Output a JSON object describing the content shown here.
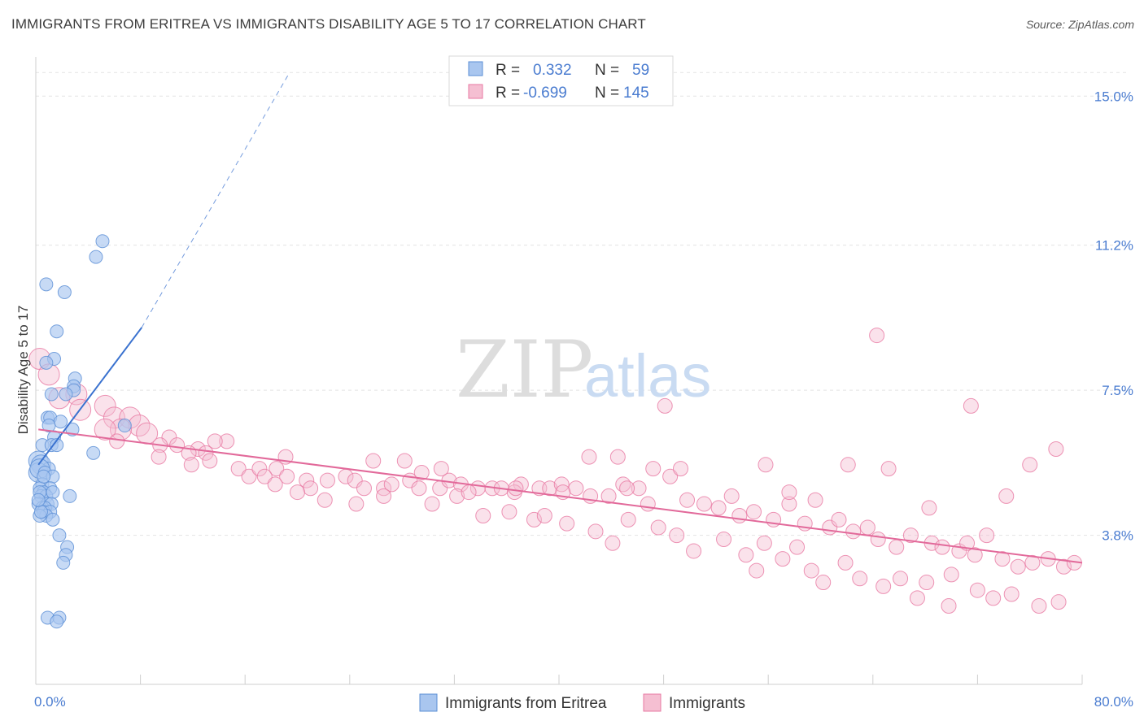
{
  "title": "IMMIGRANTS FROM ERITREA VS IMMIGRANTS DISABILITY AGE 5 TO 17 CORRELATION CHART",
  "source": "Source: ZipAtlas.com",
  "watermark": {
    "zip": "ZIP",
    "atlas": "atlas"
  },
  "colors": {
    "blue": "#5b8fd6",
    "blue_fill": "#a9c6ef",
    "blue_line": "#3a72cf",
    "pink": "#e879a3",
    "pink_fill": "#f5bfd2",
    "pink_line": "#e2699a",
    "axis_text": "#4a7cd0",
    "grid": "#e3e3e3"
  },
  "legend": {
    "rows": [
      {
        "r_label": "R =",
        "r_value": "0.332",
        "n_label": "N =",
        "n_value": "59"
      },
      {
        "r_label": "R =",
        "r_value": "-0.699",
        "n_label": "N =",
        "n_value": "145"
      }
    ]
  },
  "chart_data": {
    "type": "scatter",
    "title": "IMMIGRANTS FROM ERITREA VS IMMIGRANTS DISABILITY AGE 5 TO 17 CORRELATION CHART",
    "xlabel": "",
    "ylabel": "Disability Age 5 to 17",
    "xlim": [
      0,
      80
    ],
    "ylim": [
      0,
      16
    ],
    "x_ticks": [
      0,
      8,
      16,
      24,
      32,
      40,
      48,
      56,
      64,
      72,
      80
    ],
    "x_tick_labels": [
      {
        "x": 0,
        "label": "0.0%"
      },
      {
        "x": 80,
        "label": "80.0%"
      }
    ],
    "y_ticks": [
      {
        "y": 3.8,
        "label": "3.8%"
      },
      {
        "y": 7.5,
        "label": "7.5%"
      },
      {
        "y": 11.2,
        "label": "11.2%"
      },
      {
        "y": 15.0,
        "label": "15.0%"
      }
    ],
    "grid": true,
    "legend_position": "bottom",
    "series": [
      {
        "name": "Immigrants from Eritrea",
        "color": "#5b8fd6",
        "trend": {
          "x": [
            0.2,
            8.1
          ],
          "y": [
            5.6,
            9.1
          ],
          "dashed_to": [
            19.4,
            15.6
          ]
        },
        "points": [
          [
            5.1,
            11.3
          ],
          [
            4.6,
            10.9
          ],
          [
            0.8,
            10.2
          ],
          [
            2.2,
            10.0
          ],
          [
            1.6,
            9.0
          ],
          [
            1.4,
            8.3
          ],
          [
            0.8,
            8.2
          ],
          [
            3.0,
            7.8
          ],
          [
            2.9,
            7.6
          ],
          [
            1.2,
            7.4
          ],
          [
            2.9,
            7.5
          ],
          [
            2.3,
            7.4
          ],
          [
            0.9,
            6.8
          ],
          [
            1.1,
            6.8
          ],
          [
            1.0,
            6.6
          ],
          [
            1.9,
            6.7
          ],
          [
            2.8,
            6.5
          ],
          [
            6.8,
            6.6
          ],
          [
            1.4,
            6.3
          ],
          [
            0.5,
            6.1
          ],
          [
            1.2,
            6.1
          ],
          [
            1.6,
            6.1
          ],
          [
            4.4,
            5.9
          ],
          [
            0.2,
            5.7
          ],
          [
            0.4,
            5.6
          ],
          [
            1.0,
            5.5
          ],
          [
            0.2,
            5.4
          ],
          [
            0.3,
            5.5
          ],
          [
            0.7,
            5.4
          ],
          [
            1.3,
            5.3
          ],
          [
            0.5,
            5.1
          ],
          [
            1.1,
            5.0
          ],
          [
            0.3,
            5.0
          ],
          [
            0.6,
            4.9
          ],
          [
            0.4,
            4.8
          ],
          [
            0.8,
            4.8
          ],
          [
            1.3,
            4.9
          ],
          [
            0.3,
            4.9
          ],
          [
            2.6,
            4.8
          ],
          [
            0.2,
            4.6
          ],
          [
            0.9,
            4.6
          ],
          [
            1.2,
            4.6
          ],
          [
            0.5,
            4.5
          ],
          [
            0.7,
            4.5
          ],
          [
            0.6,
            4.4
          ],
          [
            1.1,
            4.4
          ],
          [
            0.8,
            4.3
          ],
          [
            0.3,
            4.3
          ],
          [
            0.4,
            4.4
          ],
          [
            1.3,
            4.2
          ],
          [
            1.8,
            3.8
          ],
          [
            2.4,
            3.5
          ],
          [
            2.3,
            3.3
          ],
          [
            2.1,
            3.1
          ],
          [
            0.9,
            1.7
          ],
          [
            1.8,
            1.7
          ],
          [
            1.6,
            1.6
          ],
          [
            0.2,
            4.7
          ],
          [
            0.6,
            5.3
          ]
        ]
      },
      {
        "name": "Immigrants",
        "color": "#e879a3",
        "trend": {
          "x": [
            0.2,
            80.0
          ],
          "y": [
            6.5,
            3.1
          ]
        },
        "points": [
          [
            0.3,
            8.3
          ],
          [
            1.0,
            7.9
          ],
          [
            3.1,
            7.4
          ],
          [
            1.8,
            7.3
          ],
          [
            5.3,
            7.1
          ],
          [
            3.4,
            7.0
          ],
          [
            6.0,
            6.8
          ],
          [
            7.2,
            6.8
          ],
          [
            7.9,
            6.6
          ],
          [
            6.5,
            6.5
          ],
          [
            8.5,
            6.4
          ],
          [
            5.3,
            6.5
          ],
          [
            6.2,
            6.2
          ],
          [
            10.2,
            6.3
          ],
          [
            14.6,
            6.2
          ],
          [
            9.5,
            6.1
          ],
          [
            13.7,
            6.2
          ],
          [
            10.8,
            6.1
          ],
          [
            12.4,
            6.0
          ],
          [
            11.7,
            5.9
          ],
          [
            13.0,
            5.9
          ],
          [
            9.4,
            5.8
          ],
          [
            13.3,
            5.7
          ],
          [
            11.9,
            5.6
          ],
          [
            19.1,
            5.8
          ],
          [
            25.8,
            5.7
          ],
          [
            28.2,
            5.7
          ],
          [
            15.5,
            5.5
          ],
          [
            16.3,
            5.3
          ],
          [
            17.1,
            5.5
          ],
          [
            18.4,
            5.5
          ],
          [
            17.5,
            5.3
          ],
          [
            19.2,
            5.3
          ],
          [
            20.7,
            5.2
          ],
          [
            21.0,
            5.0
          ],
          [
            22.3,
            5.2
          ],
          [
            23.7,
            5.3
          ],
          [
            24.4,
            5.2
          ],
          [
            25.1,
            5.0
          ],
          [
            26.6,
            5.0
          ],
          [
            27.2,
            5.1
          ],
          [
            28.6,
            5.2
          ],
          [
            29.3,
            5.0
          ],
          [
            30.9,
            5.0
          ],
          [
            31.6,
            5.2
          ],
          [
            32.5,
            5.1
          ],
          [
            33.8,
            5.0
          ],
          [
            34.9,
            5.0
          ],
          [
            35.6,
            5.0
          ],
          [
            37.1,
            5.1
          ],
          [
            36.6,
            4.9
          ],
          [
            38.5,
            5.0
          ],
          [
            39.3,
            5.0
          ],
          [
            40.2,
            5.1
          ],
          [
            41.3,
            5.0
          ],
          [
            42.4,
            4.8
          ],
          [
            43.8,
            4.8
          ],
          [
            44.9,
            5.1
          ],
          [
            46.1,
            5.0
          ],
          [
            47.2,
            5.5
          ],
          [
            46.8,
            4.6
          ],
          [
            48.5,
            5.3
          ],
          [
            49.8,
            4.7
          ],
          [
            51.1,
            4.6
          ],
          [
            52.2,
            4.5
          ],
          [
            53.2,
            4.8
          ],
          [
            53.8,
            4.3
          ],
          [
            54.9,
            4.4
          ],
          [
            56.4,
            4.2
          ],
          [
            57.6,
            4.6
          ],
          [
            58.8,
            4.1
          ],
          [
            59.6,
            4.7
          ],
          [
            60.7,
            4.0
          ],
          [
            61.4,
            4.2
          ],
          [
            62.5,
            3.9
          ],
          [
            63.6,
            4.0
          ],
          [
            64.4,
            3.7
          ],
          [
            65.8,
            3.5
          ],
          [
            66.9,
            3.8
          ],
          [
            68.5,
            3.6
          ],
          [
            69.3,
            3.5
          ],
          [
            70.6,
            3.4
          ],
          [
            71.8,
            3.3
          ],
          [
            72.7,
            3.8
          ],
          [
            73.9,
            3.2
          ],
          [
            75.1,
            3.0
          ],
          [
            76.2,
            3.1
          ],
          [
            77.4,
            3.2
          ],
          [
            78.6,
            3.0
          ],
          [
            79.4,
            3.1
          ],
          [
            29.5,
            5.4
          ],
          [
            30.3,
            4.6
          ],
          [
            32.2,
            4.8
          ],
          [
            34.2,
            4.3
          ],
          [
            36.2,
            4.4
          ],
          [
            38.1,
            4.2
          ],
          [
            40.6,
            4.1
          ],
          [
            42.8,
            3.9
          ],
          [
            44.1,
            3.6
          ],
          [
            45.3,
            4.2
          ],
          [
            47.6,
            4.0
          ],
          [
            49.0,
            3.8
          ],
          [
            50.3,
            3.4
          ],
          [
            52.6,
            3.7
          ],
          [
            54.3,
            3.3
          ],
          [
            55.7,
            3.6
          ],
          [
            57.1,
            3.2
          ],
          [
            58.2,
            3.5
          ],
          [
            59.3,
            2.9
          ],
          [
            61.9,
            3.1
          ],
          [
            63.0,
            2.7
          ],
          [
            64.8,
            2.5
          ],
          [
            66.1,
            2.7
          ],
          [
            68.1,
            2.6
          ],
          [
            70.0,
            2.8
          ],
          [
            72.0,
            2.4
          ],
          [
            73.2,
            2.2
          ],
          [
            74.6,
            2.3
          ],
          [
            76.7,
            2.0
          ],
          [
            78.2,
            2.1
          ],
          [
            67.4,
            2.2
          ],
          [
            69.8,
            2.0
          ],
          [
            60.2,
            2.6
          ],
          [
            55.1,
            2.9
          ],
          [
            71.2,
            3.6
          ],
          [
            44.5,
            5.8
          ],
          [
            49.3,
            5.5
          ],
          [
            55.8,
            5.6
          ],
          [
            62.1,
            5.6
          ],
          [
            65.2,
            5.5
          ],
          [
            76.0,
            5.6
          ],
          [
            78.0,
            6.0
          ],
          [
            71.5,
            7.1
          ],
          [
            48.1,
            7.1
          ],
          [
            64.3,
            8.9
          ],
          [
            74.2,
            4.8
          ],
          [
            68.3,
            4.5
          ],
          [
            57.6,
            4.9
          ],
          [
            42.3,
            5.8
          ],
          [
            26.6,
            4.8
          ],
          [
            24.5,
            4.6
          ],
          [
            22.1,
            4.7
          ],
          [
            20.0,
            4.9
          ],
          [
            18.3,
            5.1
          ],
          [
            33.1,
            4.9
          ],
          [
            36.7,
            5.0
          ],
          [
            38.9,
            4.3
          ],
          [
            40.3,
            4.9
          ],
          [
            45.2,
            5.0
          ],
          [
            31.0,
            5.5
          ]
        ]
      }
    ]
  }
}
